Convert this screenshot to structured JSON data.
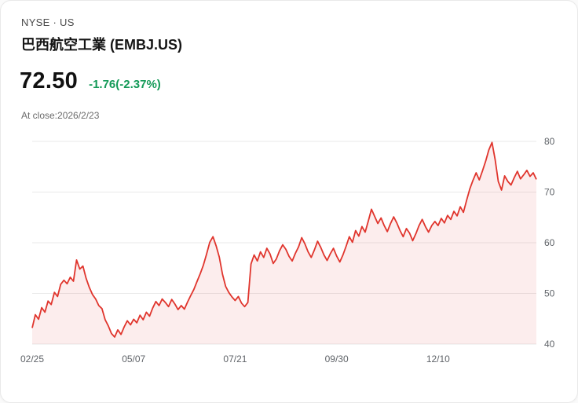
{
  "quote": {
    "exchange": "NYSE · US",
    "title": "巴西航空工業 (EMBJ.US)",
    "price": "72.50",
    "change": "-1.76(-2.37%)",
    "change_color": "#149a58",
    "as_of": "At close:2026/2/23"
  },
  "chart_data": {
    "type": "area",
    "title": "",
    "xlabel": "",
    "ylabel": "",
    "ylim": [
      40,
      80
    ],
    "y_ticks": [
      40,
      50,
      60,
      70,
      80
    ],
    "x_tick_labels": [
      "02/25",
      "05/07",
      "07/21",
      "09/30",
      "12/10"
    ],
    "x_tick_indices": [
      0,
      32,
      64,
      96,
      128
    ],
    "grid": "horizontal",
    "legend": "none",
    "line_color": "#e0352d",
    "fill_color": "rgba(226,58,50,0.09)",
    "values": [
      43.2,
      45.8,
      44.9,
      47.2,
      46.3,
      48.5,
      47.8,
      50.2,
      49.4,
      51.8,
      52.6,
      51.9,
      53.2,
      52.4,
      56.6,
      54.8,
      55.4,
      53.0,
      51.2,
      49.8,
      48.9,
      47.6,
      47.0,
      44.8,
      43.6,
      42.1,
      41.4,
      42.8,
      41.9,
      43.4,
      44.6,
      43.8,
      44.9,
      44.2,
      45.7,
      44.8,
      46.3,
      45.5,
      47.1,
      48.4,
      47.6,
      48.9,
      48.2,
      47.4,
      48.8,
      47.9,
      46.8,
      47.6,
      46.9,
      48.3,
      49.6,
      50.8,
      52.4,
      53.9,
      55.6,
      57.8,
      60.1,
      61.2,
      59.4,
      57.2,
      53.8,
      51.4,
      50.2,
      49.3,
      48.6,
      49.4,
      48.1,
      47.4,
      48.2,
      55.8,
      57.6,
      56.4,
      58.2,
      57.1,
      58.9,
      57.8,
      55.9,
      56.8,
      58.4,
      59.6,
      58.7,
      57.3,
      56.4,
      57.9,
      59.2,
      61.0,
      59.8,
      58.2,
      57.1,
      58.6,
      60.3,
      59.1,
      57.6,
      56.5,
      57.8,
      58.9,
      57.4,
      56.2,
      57.6,
      59.3,
      61.2,
      60.1,
      62.4,
      61.3,
      63.2,
      62.1,
      64.3,
      66.6,
      65.2,
      63.8,
      64.9,
      63.4,
      62.2,
      63.8,
      65.1,
      63.9,
      62.4,
      61.2,
      62.8,
      61.9,
      60.4,
      61.8,
      63.4,
      64.6,
      63.2,
      62.1,
      63.4,
      64.2,
      63.4,
      64.8,
      63.9,
      65.4,
      64.6,
      66.2,
      65.3,
      67.1,
      66.0,
      68.4,
      70.6,
      72.3,
      73.8,
      72.4,
      74.2,
      76.1,
      78.3,
      79.8,
      76.4,
      72.1,
      70.4,
      73.2,
      72.1,
      71.4,
      72.8,
      74.1,
      72.6,
      73.4,
      74.3,
      73.1,
      73.8,
      72.5
    ]
  }
}
